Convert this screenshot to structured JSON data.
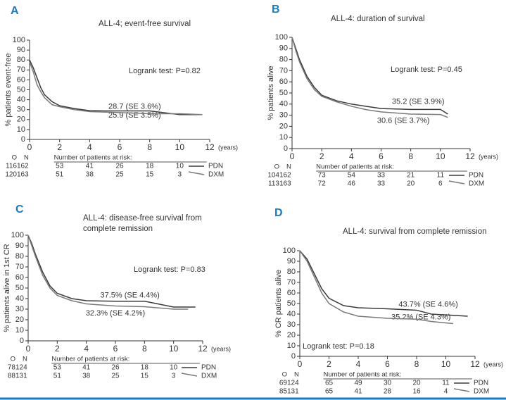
{
  "chart_data": [
    {
      "type": "line",
      "panel": "A",
      "title": "ALL-4; event-free survival",
      "ylabel": "% patients event-free",
      "xlabel": "(years)",
      "logrank": "Logrank test: P=0.82",
      "annotations": [
        "28.7 (SE 3.6%)",
        "25.9 (SE 3.5%)"
      ],
      "at_risk_header": "Number of patients at risk:",
      "o_label": "O",
      "n_label": "N",
      "xlim": [
        0,
        12
      ],
      "xticks": [
        0,
        2,
        4,
        6,
        8,
        10,
        12
      ],
      "ylim": [
        0,
        100
      ],
      "yticks": [
        0,
        10,
        20,
        30,
        40,
        50,
        60,
        70,
        80,
        90,
        100
      ],
      "series": [
        {
          "name": "PDN",
          "color": "#3a3a3a",
          "x": [
            0,
            0.25,
            0.5,
            0.75,
            1,
            1.5,
            2,
            3,
            4,
            5,
            6,
            8,
            10,
            11.5
          ],
          "values": [
            80,
            72,
            62,
            52,
            45,
            38,
            34,
            31,
            29,
            28.7,
            28.7,
            28.7,
            25,
            25
          ],
          "events": 116,
          "patients": 162,
          "at_risk": [
            53,
            41,
            26,
            18,
            10
          ]
        },
        {
          "name": "DXM",
          "color": "#7a7a7a",
          "x": [
            0,
            0.25,
            0.5,
            0.75,
            1,
            1.5,
            2,
            3,
            4,
            6,
            8,
            10,
            11.5
          ],
          "values": [
            78,
            68,
            55,
            48,
            42,
            35,
            33,
            30,
            28,
            27,
            25.9,
            25.9,
            25
          ],
          "events": 120,
          "patients": 163,
          "at_risk": [
            51,
            38,
            25,
            15,
            3
          ]
        }
      ]
    },
    {
      "type": "line",
      "panel": "B",
      "title": "ALL-4: duration of survival",
      "ylabel": "% patients alive",
      "xlabel": "(years)",
      "logrank": "Logrank test: P=0.45",
      "annotations": [
        "35.2 (SE 3.9%)",
        "30.6 (SE 3.7%)"
      ],
      "at_risk_header": "Number of patients at risk:",
      "o_label": "O",
      "n_label": "N",
      "xlim": [
        0,
        12
      ],
      "xticks": [
        0,
        2,
        4,
        6,
        8,
        10,
        12
      ],
      "ylim": [
        0,
        100
      ],
      "yticks": [
        0,
        10,
        20,
        30,
        40,
        50,
        60,
        70,
        80,
        90,
        100
      ],
      "series": [
        {
          "name": "PDN",
          "color": "#3a3a3a",
          "x": [
            0,
            0.25,
            0.5,
            1,
            1.5,
            2,
            3,
            4,
            5,
            6,
            8,
            10,
            10.5
          ],
          "values": [
            100,
            90,
            80,
            65,
            55,
            48,
            43,
            40,
            38,
            36,
            35.2,
            35.2,
            31
          ],
          "events": 104,
          "patients": 162,
          "at_risk": [
            73,
            54,
            33,
            21,
            11
          ]
        },
        {
          "name": "DXM",
          "color": "#7a7a7a",
          "x": [
            0,
            0.25,
            0.5,
            1,
            1.5,
            2,
            3,
            4,
            5,
            6,
            8,
            10,
            10.5
          ],
          "values": [
            100,
            88,
            78,
            63,
            53,
            47,
            42,
            38,
            35,
            33,
            31,
            30.6,
            28
          ],
          "events": 113,
          "patients": 163,
          "at_risk": [
            72,
            46,
            33,
            20,
            6
          ]
        }
      ]
    },
    {
      "type": "line",
      "panel": "C",
      "title": "ALL-4: disease-free survival from complete remission",
      "ylabel": "% patients alive in 1st CR",
      "xlabel": "(years)",
      "logrank": "Logrank test: P=0.83",
      "annotations": [
        "37.5% (SE 4.4%)",
        "32.3% (SE 4.2%)"
      ],
      "at_risk_header": "Number of patients at risk:",
      "o_label": "O",
      "n_label": "N",
      "xlim": [
        0,
        12
      ],
      "xticks": [
        0,
        2,
        4,
        6,
        8,
        10,
        12
      ],
      "ylim": [
        0,
        100
      ],
      "yticks": [
        0,
        10,
        20,
        30,
        40,
        50,
        60,
        70,
        80,
        90,
        100
      ],
      "series": [
        {
          "name": "PDN",
          "color": "#3a3a3a",
          "x": [
            0,
            0.25,
            0.5,
            1,
            1.5,
            2,
            3,
            4,
            6,
            8,
            10,
            11.5
          ],
          "values": [
            100,
            92,
            82,
            65,
            52,
            45,
            40,
            38,
            37.5,
            37.5,
            32,
            32
          ],
          "events": 78,
          "patients": 124,
          "at_risk": [
            53,
            41,
            26,
            18,
            10
          ]
        },
        {
          "name": "DXM",
          "color": "#7a7a7a",
          "x": [
            0,
            0.25,
            0.5,
            1,
            1.5,
            2,
            3,
            4,
            6,
            8,
            10,
            11
          ],
          "values": [
            100,
            90,
            80,
            62,
            50,
            43,
            38,
            35,
            33,
            32.3,
            30,
            30
          ],
          "events": 88,
          "patients": 131,
          "at_risk": [
            51,
            38,
            25,
            15,
            3
          ]
        }
      ]
    },
    {
      "type": "line",
      "panel": "D",
      "title": "ALL-4: survival from complete remission",
      "ylabel": "% CR patients alive",
      "xlabel": "(years)",
      "logrank": "Logrank test: P=0.18",
      "annotations": [
        "43.7% (SE 4.6%)",
        "35.2% (SE 4.3%)"
      ],
      "at_risk_header": "Number of patients at risk:",
      "o_label": "O",
      "n_label": "N",
      "xlim": [
        0,
        12
      ],
      "xticks": [
        0,
        2,
        4,
        6,
        8,
        10,
        12
      ],
      "ylim": [
        0,
        100
      ],
      "yticks": [
        0,
        10,
        20,
        30,
        40,
        50,
        60,
        70,
        80,
        90,
        100
      ],
      "series": [
        {
          "name": "PDN",
          "color": "#3a3a3a",
          "x": [
            0,
            0.5,
            1,
            1.5,
            2,
            3,
            4,
            6,
            8,
            9,
            11.5
          ],
          "values": [
            100,
            92,
            78,
            64,
            55,
            48,
            46,
            45,
            43.7,
            40,
            38
          ],
          "events": 69,
          "patients": 124,
          "at_risk": [
            65,
            49,
            30,
            20,
            11
          ]
        },
        {
          "name": "DXM",
          "color": "#7a7a7a",
          "x": [
            0,
            0.5,
            1,
            1.5,
            2,
            3,
            4,
            6,
            8,
            9,
            10.5
          ],
          "values": [
            100,
            90,
            75,
            60,
            50,
            42,
            38,
            36,
            35.2,
            33,
            31
          ],
          "events": 85,
          "patients": 131,
          "at_risk": [
            65,
            41,
            28,
            16,
            4
          ]
        }
      ]
    }
  ]
}
